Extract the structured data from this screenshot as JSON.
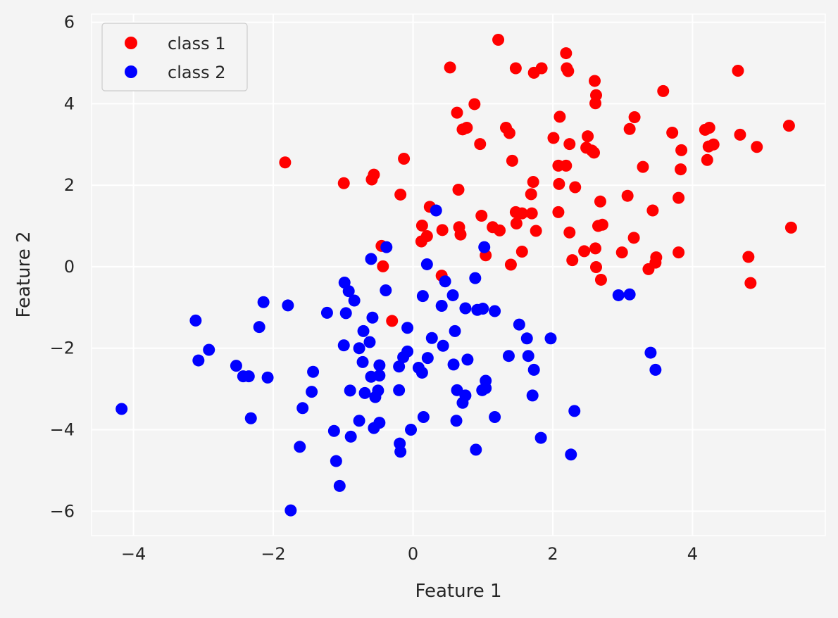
{
  "chart_data": {
    "type": "scatter",
    "title": "",
    "xlabel": "Feature 1",
    "ylabel": "Feature 2",
    "xlim": [
      -4.6,
      5.9
    ],
    "ylim": [
      -6.6,
      6.2
    ],
    "xticks": [
      -4,
      -2,
      0,
      2,
      4
    ],
    "yticks": [
      -6,
      -4,
      -2,
      0,
      2,
      4,
      6
    ],
    "xtick_labels": [
      "−4",
      "−2",
      "0",
      "2",
      "4"
    ],
    "ytick_labels": [
      "−6",
      "−4",
      "−2",
      "0",
      "2",
      "4",
      "6"
    ],
    "grid": true,
    "legend_position": "top-left",
    "background_color": "#f4f4f4",
    "grid_color": "#ffffff",
    "series": [
      {
        "name": "class 1",
        "color": "#ff0000",
        "points": [
          [
            1.22,
            5.57
          ],
          [
            2.19,
            5.24
          ],
          [
            0.53,
            4.89
          ],
          [
            1.47,
            4.87
          ],
          [
            1.84,
            4.87
          ],
          [
            2.2,
            4.87
          ],
          [
            2.22,
            4.8
          ],
          [
            1.73,
            4.76
          ],
          [
            4.65,
            4.81
          ],
          [
            2.6,
            4.56
          ],
          [
            3.58,
            4.31
          ],
          [
            2.62,
            4.21
          ],
          [
            2.61,
            4.01
          ],
          [
            0.88,
            3.99
          ],
          [
            0.63,
            3.78
          ],
          [
            2.1,
            3.68
          ],
          [
            3.17,
            3.67
          ],
          [
            1.33,
            3.41
          ],
          [
            0.77,
            3.41
          ],
          [
            0.71,
            3.37
          ],
          [
            1.38,
            3.28
          ],
          [
            3.1,
            3.38
          ],
          [
            3.71,
            3.29
          ],
          [
            4.18,
            3.36
          ],
          [
            4.24,
            3.41
          ],
          [
            4.68,
            3.24
          ],
          [
            5.38,
            3.46
          ],
          [
            2.01,
            3.16
          ],
          [
            2.5,
            3.2
          ],
          [
            0.96,
            3.01
          ],
          [
            2.24,
            3.01
          ],
          [
            2.48,
            2.92
          ],
          [
            2.56,
            2.85
          ],
          [
            4.23,
            2.95
          ],
          [
            4.3,
            3.0
          ],
          [
            3.84,
            2.86
          ],
          [
            2.59,
            2.8
          ],
          [
            4.92,
            2.94
          ],
          [
            1.42,
            2.6
          ],
          [
            4.21,
            2.62
          ],
          [
            -1.83,
            2.56
          ],
          [
            -0.13,
            2.65
          ],
          [
            3.29,
            2.45
          ],
          [
            2.08,
            2.48
          ],
          [
            2.19,
            2.48
          ],
          [
            3.83,
            2.39
          ],
          [
            -0.56,
            2.26
          ],
          [
            -0.59,
            2.14
          ],
          [
            1.72,
            2.08
          ],
          [
            2.09,
            2.03
          ],
          [
            -0.99,
            2.05
          ],
          [
            2.32,
            1.95
          ],
          [
            0.65,
            1.89
          ],
          [
            -0.18,
            1.77
          ],
          [
            1.69,
            1.78
          ],
          [
            3.07,
            1.74
          ],
          [
            3.8,
            1.69
          ],
          [
            2.68,
            1.6
          ],
          [
            0.24,
            1.47
          ],
          [
            3.43,
            1.38
          ],
          [
            1.47,
            1.34
          ],
          [
            1.56,
            1.31
          ],
          [
            1.7,
            1.31
          ],
          [
            2.08,
            1.34
          ],
          [
            0.98,
            1.25
          ],
          [
            1.48,
            1.06
          ],
          [
            0.13,
            1.01
          ],
          [
            1.14,
            0.97
          ],
          [
            0.66,
            0.97
          ],
          [
            2.65,
            1.0
          ],
          [
            2.71,
            1.03
          ],
          [
            5.41,
            0.96
          ],
          [
            0.42,
            0.9
          ],
          [
            1.24,
            0.89
          ],
          [
            1.76,
            0.88
          ],
          [
            2.24,
            0.84
          ],
          [
            0.68,
            0.79
          ],
          [
            0.2,
            0.75
          ],
          [
            3.16,
            0.71
          ],
          [
            0.12,
            0.62
          ],
          [
            -0.45,
            0.51
          ],
          [
            2.61,
            0.45
          ],
          [
            1.56,
            0.37
          ],
          [
            2.45,
            0.38
          ],
          [
            2.99,
            0.35
          ],
          [
            3.8,
            0.35
          ],
          [
            1.04,
            0.28
          ],
          [
            3.48,
            0.23
          ],
          [
            4.8,
            0.24
          ],
          [
            2.28,
            0.16
          ],
          [
            3.47,
            0.1
          ],
          [
            1.4,
            0.05
          ],
          [
            -0.43,
            0.01
          ],
          [
            2.62,
            -0.01
          ],
          [
            3.37,
            -0.06
          ],
          [
            0.41,
            -0.22
          ],
          [
            2.69,
            -0.32
          ],
          [
            4.83,
            -0.4
          ],
          [
            -0.3,
            -1.33
          ]
        ]
      },
      {
        "name": "class 2",
        "color": "#0000ff",
        "points": [
          [
            0.33,
            1.38
          ],
          [
            1.02,
            0.48
          ],
          [
            -0.38,
            0.48
          ],
          [
            -0.6,
            0.19
          ],
          [
            0.2,
            0.06
          ],
          [
            -0.98,
            -0.39
          ],
          [
            0.46,
            -0.36
          ],
          [
            0.89,
            -0.28
          ],
          [
            -0.39,
            -0.58
          ],
          [
            -0.92,
            -0.6
          ],
          [
            0.57,
            -0.7
          ],
          [
            0.14,
            -0.72
          ],
          [
            2.94,
            -0.7
          ],
          [
            3.1,
            -0.68
          ],
          [
            -2.14,
            -0.87
          ],
          [
            -0.84,
            -0.83
          ],
          [
            -1.79,
            -0.95
          ],
          [
            0.41,
            -0.96
          ],
          [
            0.75,
            -1.02
          ],
          [
            0.92,
            -1.06
          ],
          [
            1.0,
            -1.03
          ],
          [
            -1.23,
            -1.13
          ],
          [
            -0.96,
            -1.14
          ],
          [
            1.17,
            -1.09
          ],
          [
            -3.11,
            -1.32
          ],
          [
            -0.58,
            -1.25
          ],
          [
            -2.2,
            -1.48
          ],
          [
            1.52,
            -1.42
          ],
          [
            -0.08,
            -1.5
          ],
          [
            0.6,
            -1.58
          ],
          [
            -0.71,
            -1.58
          ],
          [
            0.27,
            -1.75
          ],
          [
            1.63,
            -1.76
          ],
          [
            1.97,
            -1.76
          ],
          [
            -0.62,
            -1.85
          ],
          [
            -0.99,
            -1.93
          ],
          [
            -0.77,
            -2.0
          ],
          [
            0.43,
            -1.94
          ],
          [
            -2.92,
            -2.04
          ],
          [
            3.4,
            -2.11
          ],
          [
            1.37,
            -2.19
          ],
          [
            1.65,
            -2.19
          ],
          [
            0.21,
            -2.24
          ],
          [
            0.78,
            -2.28
          ],
          [
            -0.14,
            -2.22
          ],
          [
            -0.08,
            -2.08
          ],
          [
            -3.07,
            -2.3
          ],
          [
            -0.72,
            -2.34
          ],
          [
            0.58,
            -2.4
          ],
          [
            -0.48,
            -2.42
          ],
          [
            -2.53,
            -2.43
          ],
          [
            -0.2,
            -2.45
          ],
          [
            0.08,
            -2.48
          ],
          [
            3.47,
            -2.53
          ],
          [
            1.73,
            -2.53
          ],
          [
            -1.43,
            -2.58
          ],
          [
            0.13,
            -2.6
          ],
          [
            -0.48,
            -2.67
          ],
          [
            -2.43,
            -2.69
          ],
          [
            -2.35,
            -2.69
          ],
          [
            -0.6,
            -2.7
          ],
          [
            -2.08,
            -2.72
          ],
          [
            1.04,
            -2.8
          ],
          [
            -0.2,
            -3.03
          ],
          [
            0.63,
            -3.03
          ],
          [
            0.99,
            -3.03
          ],
          [
            1.04,
            -2.98
          ],
          [
            -0.5,
            -3.04
          ],
          [
            -0.9,
            -3.04
          ],
          [
            -0.69,
            -3.1
          ],
          [
            -1.45,
            -3.07
          ],
          [
            0.75,
            -3.16
          ],
          [
            -0.54,
            -3.2
          ],
          [
            1.71,
            -3.16
          ],
          [
            0.71,
            -3.34
          ],
          [
            -1.58,
            -3.47
          ],
          [
            -4.17,
            -3.49
          ],
          [
            2.31,
            -3.54
          ],
          [
            0.15,
            -3.69
          ],
          [
            1.17,
            -3.69
          ],
          [
            -2.32,
            -3.72
          ],
          [
            -0.77,
            -3.78
          ],
          [
            -0.48,
            -3.83
          ],
          [
            0.62,
            -3.78
          ],
          [
            -0.56,
            -3.96
          ],
          [
            -0.03,
            -4.0
          ],
          [
            -1.13,
            -4.03
          ],
          [
            -0.89,
            -4.17
          ],
          [
            1.83,
            -4.2
          ],
          [
            -0.19,
            -4.34
          ],
          [
            -1.62,
            -4.42
          ],
          [
            0.9,
            -4.49
          ],
          [
            -0.18,
            -4.54
          ],
          [
            2.26,
            -4.61
          ],
          [
            -1.1,
            -4.77
          ],
          [
            -1.05,
            -5.38
          ],
          [
            -1.75,
            -5.98
          ]
        ]
      }
    ]
  }
}
